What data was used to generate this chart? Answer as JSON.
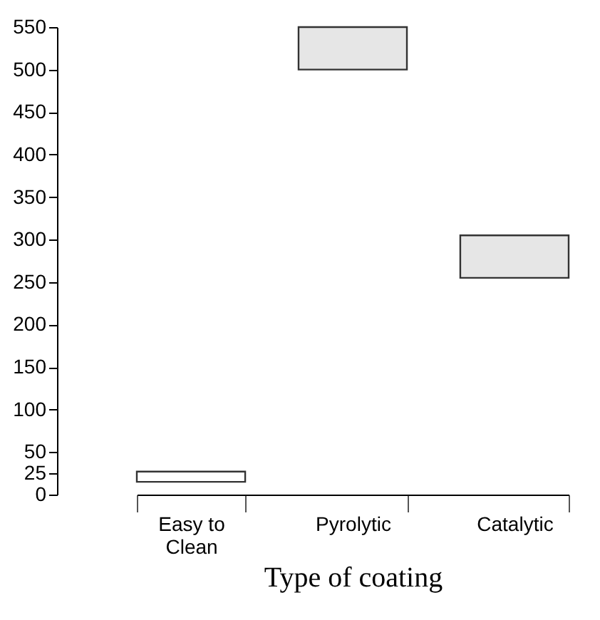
{
  "chart_data": {
    "type": "bar",
    "xlabel": "Type of coating",
    "categories": [
      "Easy to Clean",
      "Pyrolytic",
      "Catalytic"
    ],
    "base": [
      15,
      500,
      255
    ],
    "values": [
      12,
      50,
      50
    ],
    "colors": [
      "#ffffff",
      "#e6e6e6",
      "#e6e6e6"
    ],
    "ylim": [
      0,
      550
    ],
    "yticks": [
      0,
      25,
      50,
      100,
      150,
      200,
      250,
      300,
      350,
      400,
      450,
      500,
      550
    ]
  }
}
